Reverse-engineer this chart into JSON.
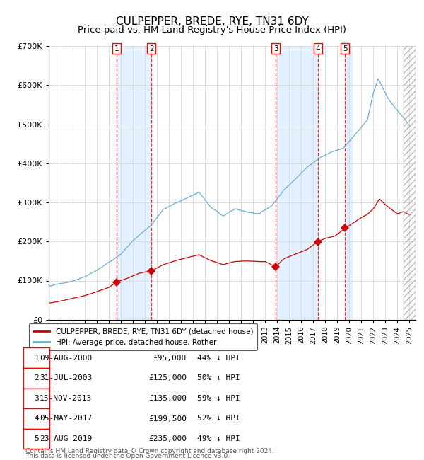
{
  "title": "CULPEPPER, BREDE, RYE, TN31 6DY",
  "subtitle": "Price paid vs. HM Land Registry's House Price Index (HPI)",
  "title_fontsize": 11,
  "subtitle_fontsize": 9.5,
  "ylim": [
    0,
    700000
  ],
  "yticks": [
    0,
    100000,
    200000,
    300000,
    400000,
    500000,
    600000,
    700000
  ],
  "ytick_labels": [
    "£0",
    "£100K",
    "£200K",
    "£300K",
    "£400K",
    "£500K",
    "£600K",
    "£700K"
  ],
  "hpi_color": "#6baed6",
  "price_color": "#cc0000",
  "background_color": "#ffffff",
  "grid_color": "#d0d0d0",
  "transaction_numbers": [
    1,
    2,
    3,
    4,
    5
  ],
  "transaction_dates": [
    "2000-08-09",
    "2003-07-31",
    "2013-11-15",
    "2017-05-05",
    "2019-08-23"
  ],
  "transaction_prices": [
    95000,
    125000,
    135000,
    199500,
    235000
  ],
  "transaction_pct": [
    "44%",
    "50%",
    "59%",
    "52%",
    "49%"
  ],
  "transaction_date_labels": [
    "09-AUG-2000",
    "31-JUL-2003",
    "15-NOV-2013",
    "05-MAY-2017",
    "23-AUG-2019"
  ],
  "transaction_price_labels": [
    "£95,000",
    "£125,000",
    "£135,000",
    "£199,500",
    "£235,000"
  ],
  "legend_house_label": "CULPEPPER, BREDE, RYE, TN31 6DY (detached house)",
  "legend_hpi_label": "HPI: Average price, detached house, Rother",
  "footnote1": "Contains HM Land Registry data © Crown copyright and database right 2024.",
  "footnote2": "This data is licensed under the Open Government Licence v3.0.",
  "shade_color": "#ddeeff",
  "hatch_color": "#bbbbbb",
  "xlim_start": 1995,
  "xlim_end": 2025.5,
  "hatch_start": 2024.5
}
